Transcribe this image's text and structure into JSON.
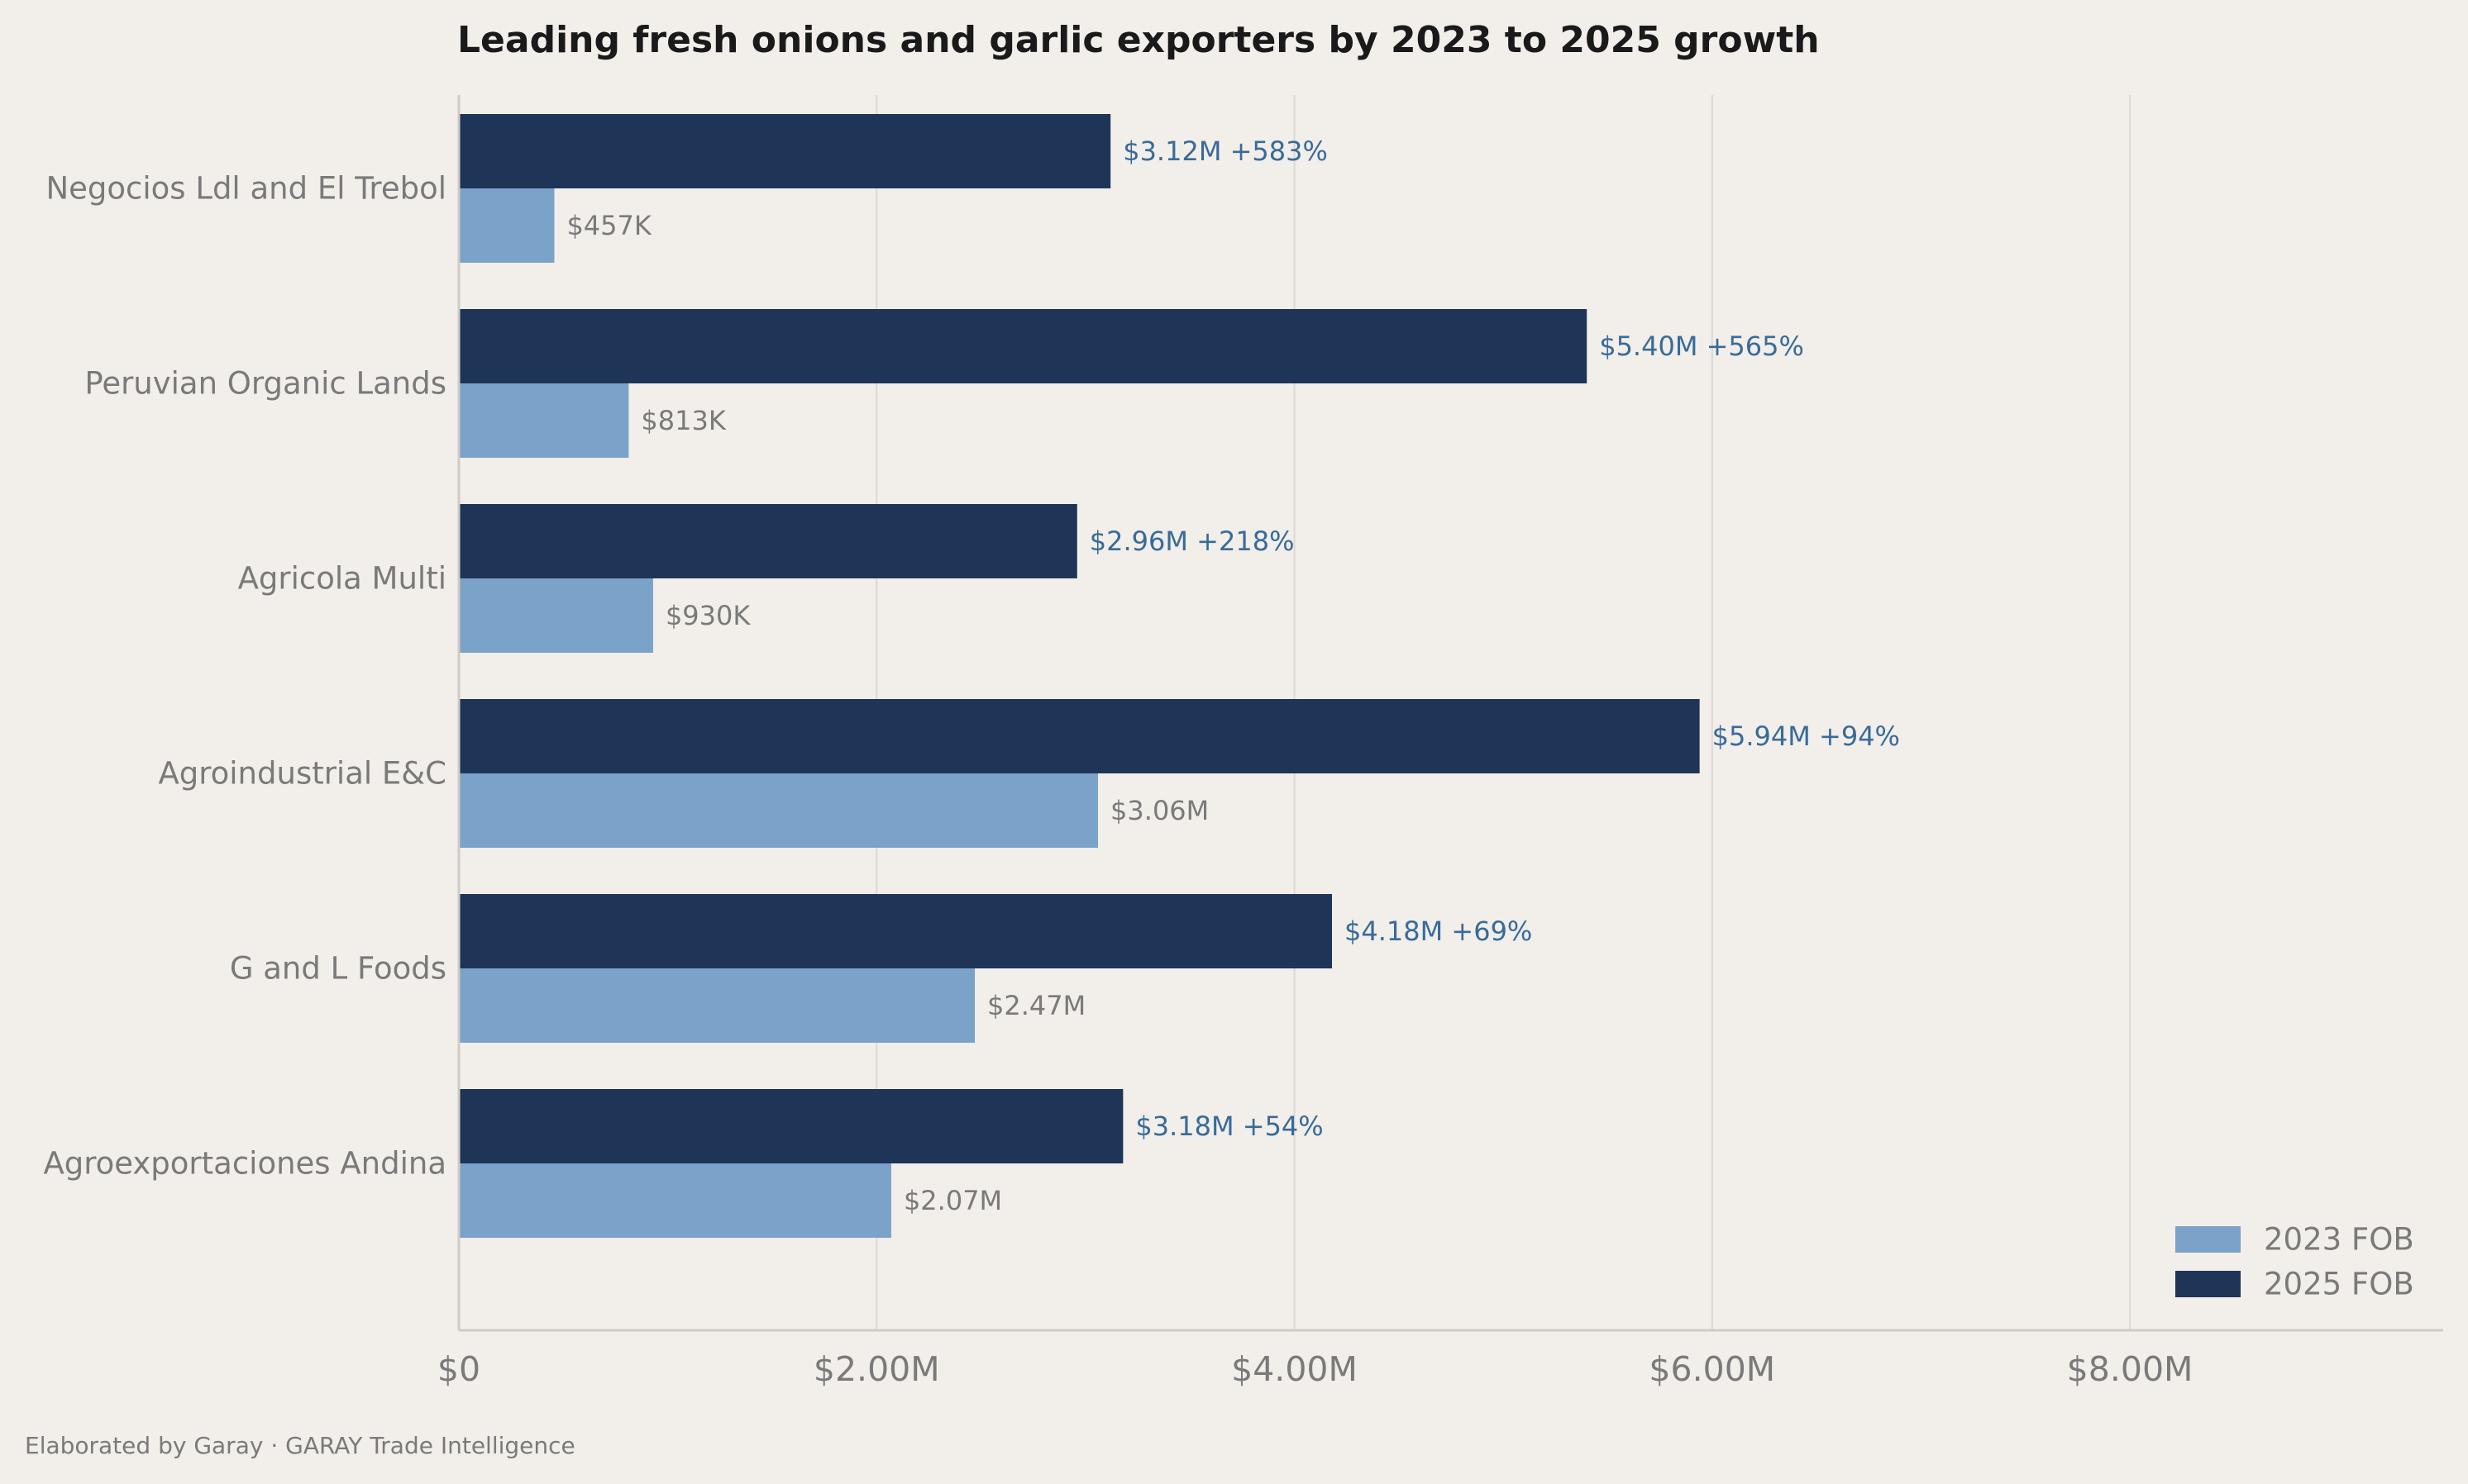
{
  "chart_data": {
    "type": "bar",
    "orientation": "horizontal",
    "title": "Leading fresh onions and garlic exporters by 2023 to 2025 growth",
    "categories": [
      "Negocios Ldl and El Trebol",
      "Peruvian Organic Lands",
      "Agricola Multi",
      "Agroindustrial E&C",
      "G and L Foods",
      "Agroexportaciones Andina"
    ],
    "series": [
      {
        "name": "2023 FOB",
        "color": "#7ba2c8",
        "values": [
          457000,
          813000,
          930000,
          3060000,
          2470000,
          2070000
        ],
        "labels": [
          "$457K",
          "$813K",
          "$930K",
          "$3.06M",
          "$2.47M",
          "$2.07M"
        ]
      },
      {
        "name": "2025 FOB",
        "color": "#1e3557",
        "values": [
          3120000,
          5400000,
          2960000,
          5940000,
          4180000,
          3180000
        ],
        "labels": [
          "$3.12M  +583%",
          "$5.40M  +565%",
          "$2.96M  +218%",
          "$5.94M  +94%",
          "$4.18M  +69%",
          "$3.18M  +54%"
        ]
      }
    ],
    "xlim": [
      0,
      9500000
    ],
    "xticks": [
      0,
      2000000,
      4000000,
      6000000,
      8000000
    ],
    "xtick_labels": [
      "$0",
      "$2.00M",
      "$4.00M",
      "$6.00M",
      "$8.00M"
    ],
    "grid": true,
    "legend": "bottom-right"
  },
  "footer": "Elaborated by Garay  ·  GARAY Trade Intelligence"
}
